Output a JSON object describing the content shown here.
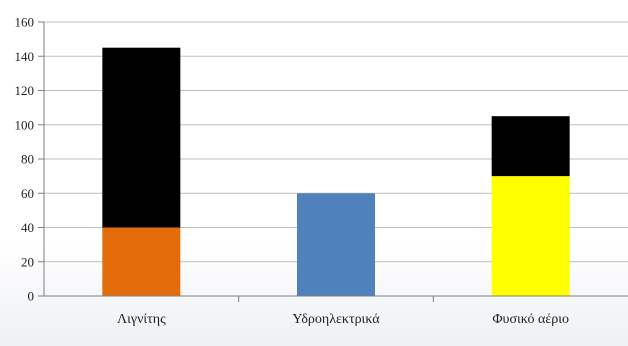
{
  "chart_data": {
    "type": "bar",
    "stacked": true,
    "categories": [
      "Λιγνίτης",
      "Υδροηλεκτρικά",
      "Φυσικό αέριο"
    ],
    "series": [
      {
        "color": "#e36c0a",
        "values": [
          40,
          0,
          0
        ]
      },
      {
        "color": "#4f81bd",
        "values": [
          0,
          60,
          0
        ]
      },
      {
        "color": "#ffff00",
        "values": [
          0,
          0,
          70
        ]
      },
      {
        "color": "#000000",
        "values": [
          105,
          0,
          35
        ]
      }
    ],
    "yticks": [
      "0",
      "20",
      "40",
      "60",
      "80",
      "100",
      "120",
      "140",
      "160"
    ],
    "ylim": [
      0,
      160
    ],
    "grid": true,
    "legend": "none",
    "title": "",
    "xlabel": "",
    "ylabel": ""
  }
}
